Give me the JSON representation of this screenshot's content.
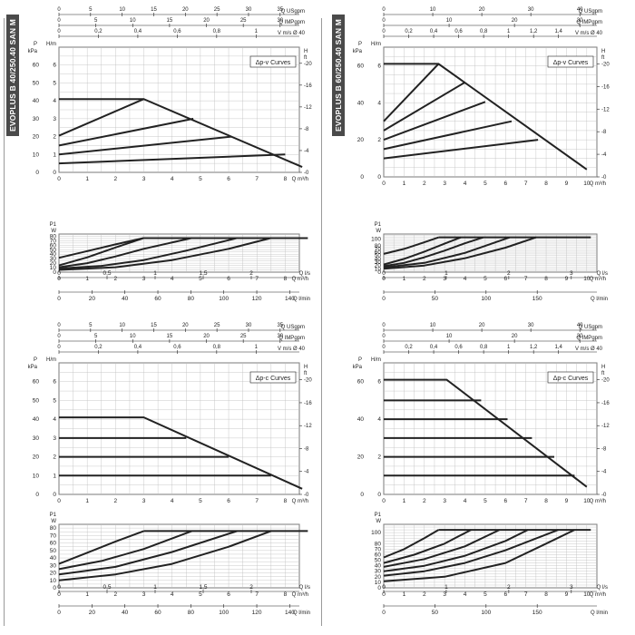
{
  "side_labels": {
    "left": "EVOPLUS B 40/250.40 SAN M",
    "right": "EVOPLUS B 60/250.40 SAN M"
  },
  "colors": {
    "curve": "#222222",
    "grid": "#bdbdbd",
    "text": "#222222",
    "label_bg": "#4a4a4a"
  },
  "chart_data": [
    {
      "id": "b40-pv",
      "type": "line",
      "curve_label": "Δp-v Curves",
      "top_axes": [
        {
          "unit": "Q USgpm",
          "ticks": [
            "0",
            "5",
            "10",
            "15",
            "20",
            "25",
            "30",
            "35"
          ]
        },
        {
          "unit": "Q IMPgpm",
          "ticks": [
            "0",
            "5",
            "10",
            "15",
            "20",
            "25",
            "30"
          ]
        },
        {
          "unit": "V m/s Ø 40",
          "ticks": [
            "0",
            "0,2",
            "0,4",
            "0,6",
            "0,8",
            "1"
          ]
        }
      ],
      "head": {
        "xlabel": "Q m³/h",
        "xlim": [
          0,
          8.5
        ],
        "xticks": [
          "0",
          "1",
          "2",
          "3",
          "4",
          "5",
          "6",
          "7",
          "8"
        ],
        "ylabel_m": "H/m",
        "ylim": [
          0,
          7
        ],
        "yticks_m": [
          "0",
          "1",
          "2",
          "3",
          "4",
          "5",
          "6"
        ],
        "ylabel_kpa": "P kPa",
        "yticks_kpa": [
          "0",
          "10",
          "20",
          "30",
          "40",
          "50",
          "60"
        ],
        "ylabel_ft": "H ft",
        "yticks_ft": [
          "0",
          "4",
          "8",
          "12",
          "16",
          "20"
        ],
        "series": [
          {
            "x": [
              0,
              3,
              8.6
            ],
            "y": [
              4.1,
              4.1,
              0.3
            ]
          },
          {
            "x": [
              0,
              3
            ],
            "y": [
              2.05,
              4.1
            ]
          },
          {
            "x": [
              0,
              4.75
            ],
            "y": [
              1.5,
              3.0
            ]
          },
          {
            "x": [
              0,
              6.1
            ],
            "y": [
              1.0,
              2.0
            ]
          },
          {
            "x": [
              0,
              8.0
            ],
            "y": [
              0.5,
              1.0
            ]
          }
        ]
      },
      "power": {
        "ylabel": "P1 W",
        "ylim": [
          0,
          85
        ],
        "yticks": [
          "0",
          "10",
          "20",
          "30",
          "40",
          "50",
          "60",
          "70",
          "80"
        ],
        "xlabel": "Q m³/h",
        "xticks": [
          "0",
          "1",
          "2",
          "3",
          "4",
          "5",
          "6",
          "7",
          "8"
        ],
        "xlim": [
          0,
          8.5
        ],
        "max_line": {
          "x": [
            3,
            8.8
          ],
          "y": [
            76,
            76
          ]
        },
        "series": [
          {
            "x": [
              0,
              1,
              2,
              3
            ],
            "y": [
              32,
              47,
              62,
              76
            ]
          },
          {
            "x": [
              0,
              1,
              2,
              3
            ],
            "y": [
              15,
              33,
              55,
              76
            ]
          },
          {
            "x": [
              0,
              1,
              2,
              3,
              4.7
            ],
            "y": [
              11,
              20,
              35,
              52,
              76
            ]
          },
          {
            "x": [
              0,
              1.5,
              3,
              4.5,
              6.3
            ],
            "y": [
              8,
              14,
              27,
              48,
              76
            ]
          },
          {
            "x": [
              0,
              2,
              4,
              6,
              7.5
            ],
            "y": [
              5,
              11,
              27,
              52,
              76
            ]
          }
        ]
      },
      "bottom_axes": [
        {
          "unit": "Q l/s",
          "ticks": [
            "0",
            "0,5",
            "1",
            "1,5",
            "2"
          ]
        },
        {
          "unit": "Q l/min",
          "ticks": [
            "0",
            "20",
            "40",
            "60",
            "80",
            "100",
            "120",
            "140"
          ]
        }
      ]
    },
    {
      "id": "b60-pv",
      "type": "line",
      "curve_label": "Δp-v Curves",
      "top_axes": [
        {
          "unit": "Q USgpm",
          "ticks": [
            "0",
            "10",
            "20",
            "30",
            "40"
          ]
        },
        {
          "unit": "Q IMPgpm",
          "ticks": [
            "0",
            "10",
            "20",
            "30"
          ]
        },
        {
          "unit": "V m/s Ø 40",
          "ticks": [
            "0",
            "0,2",
            "0,4",
            "0,6",
            "0,8",
            "1",
            "1,2",
            "1,4"
          ]
        }
      ],
      "head": {
        "xlabel": "Q m³/h",
        "xlim": [
          0,
          10.5
        ],
        "xticks": [
          "0",
          "1",
          "2",
          "3",
          "4",
          "5",
          "6",
          "7",
          "8",
          "9",
          "10"
        ],
        "ylabel_m": "H/m",
        "ylim": [
          0,
          7
        ],
        "yticks_m": [
          "0",
          "2",
          "4",
          "6"
        ],
        "ylabel_kpa": "P kPa",
        "yticks_kpa": [
          "0",
          "20",
          "40",
          "60"
        ],
        "ylabel_ft": "H ft",
        "yticks_ft": [
          "0",
          "4",
          "8",
          "12",
          "16",
          "20"
        ],
        "series": [
          {
            "x": [
              0,
              2.7,
              10
            ],
            "y": [
              6.1,
              6.1,
              0.4
            ]
          },
          {
            "x": [
              0,
              2.7
            ],
            "y": [
              3.0,
              6.1
            ]
          },
          {
            "x": [
              0,
              4.0
            ],
            "y": [
              2.5,
              5.1
            ]
          },
          {
            "x": [
              0,
              5.0
            ],
            "y": [
              2.0,
              4.05
            ]
          },
          {
            "x": [
              0,
              6.3
            ],
            "y": [
              1.5,
              3.0
            ]
          },
          {
            "x": [
              0,
              7.6
            ],
            "y": [
              1.0,
              2.0
            ]
          }
        ]
      },
      "power": {
        "ylabel": "P1 W",
        "ylim": [
          0,
          115
        ],
        "yticks": [
          "0",
          "10",
          "20",
          "30",
          "40",
          "50",
          "60",
          "70",
          "80",
          "100"
        ],
        "xlabel": "Q m³/h",
        "xticks": [
          "0",
          "1",
          "2",
          "3",
          "4",
          "5",
          "6",
          "7",
          "8",
          "9",
          "10"
        ],
        "xlim": [
          0,
          10.5
        ],
        "max_line": {
          "x": [
            2.7,
            10.2
          ],
          "y": [
            105,
            105
          ]
        },
        "series": [
          {
            "x": [
              0,
              1,
              2,
              2.7
            ],
            "y": [
              55,
              70,
              90,
              105
            ]
          },
          {
            "x": [
              0,
              1,
              2,
              3,
              3.8
            ],
            "y": [
              23,
              40,
              62,
              86,
              105
            ]
          },
          {
            "x": [
              0,
              1,
              2,
              3,
              4,
              4.9
            ],
            "y": [
              18,
              28,
              45,
              65,
              87,
              105
            ]
          },
          {
            "x": [
              0,
              2,
              4,
              6.2
            ],
            "y": [
              14,
              28,
              58,
              105
            ]
          },
          {
            "x": [
              0,
              2,
              4,
              6,
              7.5
            ],
            "y": [
              10,
              20,
              42,
              74,
              105
            ]
          }
        ]
      },
      "bottom_axes": [
        {
          "unit": "Q l/s",
          "ticks": [
            "0",
            "1",
            "2",
            "3"
          ]
        },
        {
          "unit": "Q l/min",
          "ticks": [
            "0",
            "50",
            "100",
            "150"
          ]
        }
      ]
    },
    {
      "id": "b40-pc",
      "type": "line",
      "curve_label": "Δp-c Curves",
      "top_axes": [
        {
          "unit": "Q USgpm",
          "ticks": [
            "0",
            "5",
            "10",
            "15",
            "20",
            "25",
            "30",
            "35"
          ]
        },
        {
          "unit": "Q IMPgpm",
          "ticks": [
            "0",
            "5",
            "10",
            "15",
            "20",
            "25",
            "30"
          ]
        },
        {
          "unit": "V m/s Ø 40",
          "ticks": [
            "0",
            "0,2",
            "0,4",
            "0,6",
            "0,8",
            "1"
          ]
        }
      ],
      "head": {
        "xlabel": "Q m³/h",
        "xlim": [
          0,
          8.5
        ],
        "xticks": [
          "0",
          "1",
          "2",
          "3",
          "4",
          "5",
          "6",
          "7",
          "8"
        ],
        "ylabel_m": "H/m",
        "ylim": [
          0,
          7
        ],
        "yticks_m": [
          "0",
          "1",
          "2",
          "3",
          "4",
          "5",
          "6"
        ],
        "ylabel_kpa": "P kPa",
        "yticks_kpa": [
          "0",
          "10",
          "20",
          "30",
          "40",
          "50",
          "60"
        ],
        "ylabel_ft": "H ft",
        "yticks_ft": [
          "0",
          "4",
          "8",
          "12",
          "16",
          "20"
        ],
        "series": [
          {
            "x": [
              0,
              3,
              8.6
            ],
            "y": [
              4.1,
              4.1,
              0.3
            ]
          },
          {
            "x": [
              0,
              4.5
            ],
            "y": [
              3.0,
              3.0
            ]
          },
          {
            "x": [
              0,
              6.0
            ],
            "y": [
              2.0,
              2.0
            ]
          },
          {
            "x": [
              0,
              7.5
            ],
            "y": [
              1.0,
              1.0
            ]
          }
        ]
      },
      "power": {
        "ylabel": "P1 W",
        "ylim": [
          0,
          85
        ],
        "yticks": [
          "0",
          "10",
          "20",
          "30",
          "40",
          "50",
          "60",
          "70",
          "80"
        ],
        "xlabel": "Q m³/h",
        "xticks": [
          "0",
          "1",
          "2",
          "3",
          "4",
          "5",
          "6",
          "7",
          "8"
        ],
        "xlim": [
          0,
          8.5
        ],
        "max_line": {
          "x": [
            3,
            8.8
          ],
          "y": [
            76,
            76
          ]
        },
        "series": [
          {
            "x": [
              0,
              1,
              2,
              3
            ],
            "y": [
              32,
              47,
              62,
              76
            ]
          },
          {
            "x": [
              0,
              1.5,
              3,
              4.7
            ],
            "y": [
              25,
              36,
              52,
              76
            ]
          },
          {
            "x": [
              0,
              2,
              4,
              6.3
            ],
            "y": [
              18,
              28,
              48,
              76
            ]
          },
          {
            "x": [
              0,
              2,
              4,
              6,
              7.5
            ],
            "y": [
              10,
              18,
              32,
              55,
              76
            ]
          }
        ]
      },
      "bottom_axes": [
        {
          "unit": "Q l/s",
          "ticks": [
            "0",
            "0,5",
            "1",
            "1,5",
            "2"
          ]
        },
        {
          "unit": "Q l/min",
          "ticks": [
            "0",
            "20",
            "40",
            "60",
            "80",
            "100",
            "120",
            "140"
          ]
        }
      ]
    },
    {
      "id": "b60-pc",
      "type": "line",
      "curve_label": "Δp-c Curves",
      "top_axes": [
        {
          "unit": "Q USgpm",
          "ticks": [
            "0",
            "10",
            "20",
            "30",
            "40"
          ]
        },
        {
          "unit": "Q IMPgpm",
          "ticks": [
            "0",
            "10",
            "20",
            "30"
          ]
        },
        {
          "unit": "V m/s Ø 40",
          "ticks": [
            "0",
            "0,2",
            "0,4",
            "0,6",
            "0,8",
            "1",
            "1,2",
            "1,4"
          ]
        }
      ],
      "head": {
        "xlabel": "Q m³/h",
        "xlim": [
          0,
          10.5
        ],
        "xticks": [
          "0",
          "1",
          "2",
          "3",
          "4",
          "5",
          "6",
          "7",
          "8",
          "9",
          "10"
        ],
        "ylabel_m": "H/m",
        "ylim": [
          0,
          7
        ],
        "yticks_m": [
          "0",
          "2",
          "4",
          "6"
        ],
        "ylabel_kpa": "P kPa",
        "yticks_kpa": [
          "0",
          "20",
          "40",
          "60"
        ],
        "ylabel_ft": "H ft",
        "yticks_ft": [
          "0",
          "4",
          "8",
          "12",
          "16",
          "20"
        ],
        "series": [
          {
            "x": [
              0,
              3.1,
              10
            ],
            "y": [
              6.1,
              6.1,
              0.4
            ]
          },
          {
            "x": [
              0,
              4.8
            ],
            "y": [
              5.0,
              5.0
            ]
          },
          {
            "x": [
              0,
              6.1
            ],
            "y": [
              4.0,
              4.0
            ]
          },
          {
            "x": [
              0,
              7.3
            ],
            "y": [
              3.0,
              3.0
            ]
          },
          {
            "x": [
              0,
              8.4
            ],
            "y": [
              2.0,
              2.0
            ]
          },
          {
            "x": [
              0,
              9.4
            ],
            "y": [
              1.0,
              1.0
            ]
          }
        ]
      },
      "power": {
        "ylabel": "P1 W",
        "ylim": [
          0,
          115
        ],
        "yticks": [
          "0",
          "10",
          "20",
          "30",
          "40",
          "50",
          "60",
          "70",
          "80",
          "100"
        ],
        "xlabel": "Q m³/h",
        "xticks": [
          "0",
          "1",
          "2",
          "3",
          "4",
          "5",
          "6",
          "7",
          "8",
          "9",
          "10"
        ],
        "xlim": [
          0,
          10.5
        ],
        "max_line": {
          "x": [
            2.7,
            10.2
          ],
          "y": [
            105,
            105
          ]
        },
        "series": [
          {
            "x": [
              0,
              1,
              2,
              2.7
            ],
            "y": [
              55,
              70,
              90,
              105
            ]
          },
          {
            "x": [
              0,
              1.5,
              3,
              4.3
            ],
            "y": [
              45,
              60,
              80,
              105
            ]
          },
          {
            "x": [
              0,
              2,
              4,
              5.7
            ],
            "y": [
              38,
              52,
              75,
              105
            ]
          },
          {
            "x": [
              0,
              2,
              4,
              6,
              7.1
            ],
            "y": [
              30,
              40,
              58,
              85,
              105
            ]
          },
          {
            "x": [
              0,
              2,
              4,
              6,
              8.6
            ],
            "y": [
              22,
              30,
              45,
              68,
              105
            ]
          },
          {
            "x": [
              0,
              3,
              6,
              8,
              9.4
            ],
            "y": [
              12,
              20,
              45,
              80,
              105
            ]
          }
        ]
      },
      "bottom_axes": [
        {
          "unit": "Q l/s",
          "ticks": [
            "0",
            "1",
            "2",
            "3"
          ]
        },
        {
          "unit": "Q l/min",
          "ticks": [
            "0",
            "50",
            "100",
            "150"
          ]
        }
      ]
    }
  ]
}
